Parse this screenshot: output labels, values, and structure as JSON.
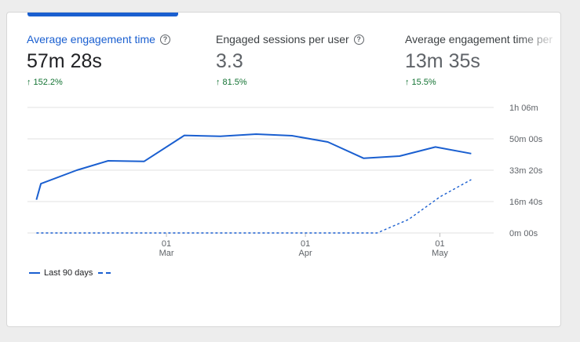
{
  "metrics": [
    {
      "label": "Average engagement time",
      "value": "57m 28s",
      "change": "152.2%",
      "active": true
    },
    {
      "label": "Engaged sessions per user",
      "value": "3.3",
      "change": "81.5%",
      "active": false
    },
    {
      "label": "Average engagement time per",
      "value": "13m 35s",
      "change": "15.5%",
      "active": false
    }
  ],
  "legend": {
    "label": "Last 90 days"
  },
  "colors": {
    "accent": "#1a5fd0",
    "positive": "#137333",
    "grid": "#e0e0e0"
  },
  "chart_data": {
    "type": "line",
    "y_tick_labels": [
      "0m 00s",
      "16m 40s",
      "33m 20s",
      "50m 00s",
      "1h 06m"
    ],
    "y_tick_values": [
      0,
      1000,
      2000,
      3000,
      4000
    ],
    "ylim": [
      0,
      4000
    ],
    "x_tick_labels": [
      {
        "date": "2024-03-01",
        "day": "01",
        "month": "Mar"
      },
      {
        "date": "2024-04-01",
        "day": "01",
        "month": "Apr"
      },
      {
        "date": "2024-05-01",
        "day": "01",
        "month": "May"
      }
    ],
    "xlim": [
      "2024-01-30",
      "2024-05-13"
    ],
    "series": [
      {
        "name": "Last 90 days",
        "style": "solid",
        "x": [
          "2024-02-01",
          "2024-02-02",
          "2024-02-10",
          "2024-02-17",
          "2024-02-25",
          "2024-03-05",
          "2024-03-13",
          "2024-03-21",
          "2024-03-29",
          "2024-04-06",
          "2024-04-14",
          "2024-04-22",
          "2024-04-30",
          "2024-05-08"
        ],
        "y": [
          1060,
          1570,
          2000,
          2300,
          2280,
          3110,
          3080,
          3150,
          3100,
          2900,
          2380,
          2450,
          2740,
          2530
        ]
      },
      {
        "name": "",
        "style": "dashed",
        "x": [
          "2024-02-01",
          "2024-04-17",
          "2024-04-24",
          "2024-05-01",
          "2024-05-08"
        ],
        "y": [
          0,
          0,
          430,
          1150,
          1700
        ]
      }
    ]
  }
}
